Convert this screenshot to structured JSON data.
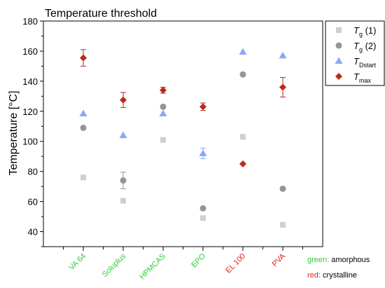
{
  "chart_data": {
    "type": "scatter",
    "title": "Temperature threshold",
    "ylabel": "Temperature [°C]",
    "ylim": [
      30,
      180
    ],
    "yticks": [
      40,
      60,
      80,
      100,
      120,
      140,
      160,
      180
    ],
    "categories": [
      {
        "label": "VA 64",
        "color": "#33cc33"
      },
      {
        "label": "Soluplus",
        "color": "#33cc33"
      },
      {
        "label": "HPMCAS",
        "color": "#33cc33"
      },
      {
        "label": "EPO",
        "color": "#33cc33"
      },
      {
        "label": "EL 100",
        "color": "#e02020"
      },
      {
        "label": "PVA",
        "color": "#e02020"
      }
    ],
    "series": [
      {
        "name": "T",
        "sub": "g",
        "suffix": " (1)",
        "marker": "square",
        "color": "#cfcfcf",
        "values": [
          76,
          60.5,
          101,
          49,
          103,
          44.5
        ],
        "errors": [
          0,
          0,
          0,
          0,
          0,
          0
        ]
      },
      {
        "name": "T",
        "sub": "g",
        "suffix": " (2)",
        "marker": "circle",
        "color": "#959595",
        "values": [
          109,
          74,
          123,
          55.5,
          144.5,
          68.5
        ],
        "errors": [
          0,
          5.5,
          0,
          0,
          0,
          0
        ]
      },
      {
        "name": "T",
        "sub": "Dstart",
        "suffix": "",
        "marker": "triangle",
        "color": "#8aa8f5",
        "values": [
          118.5,
          104,
          118.5,
          92,
          159.5,
          157
        ],
        "errors": [
          0,
          0,
          0,
          3.5,
          0,
          0
        ]
      },
      {
        "name": "T",
        "sub": "max",
        "suffix": "",
        "marker": "diamond",
        "color": "#c0281b",
        "values": [
          155.5,
          127.5,
          134,
          123,
          85,
          136
        ],
        "errors": [
          5.5,
          5,
          2,
          2.5,
          0,
          6.5
        ]
      }
    ],
    "grid": false,
    "legend_position": "top-right"
  },
  "notes": [
    {
      "colored": "green:",
      "color": "#33cc33",
      "rest": " amorphous"
    },
    {
      "colored": "red:",
      "color": "#e02020",
      "rest": " crystalline"
    }
  ],
  "colors": {
    "errorbar": "#b03020"
  }
}
